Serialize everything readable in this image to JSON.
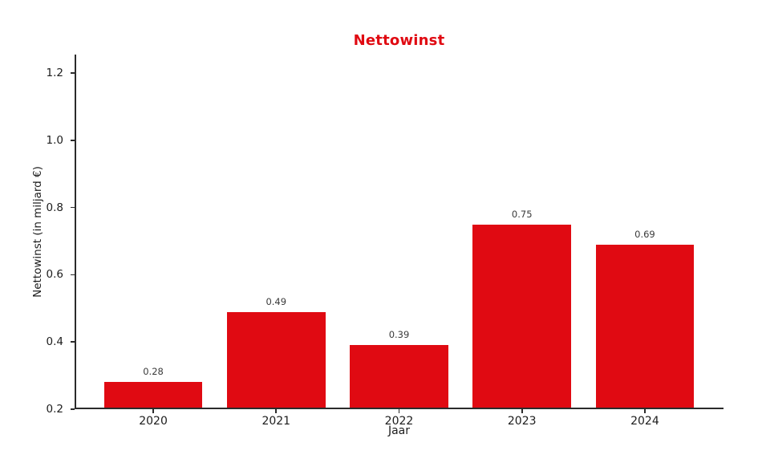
{
  "chart_data": {
    "type": "bar",
    "title": "Nettowinst",
    "xlabel": "Jaar",
    "ylabel": "Nettowinst (in miljard €)",
    "categories": [
      "2020",
      "2021",
      "2022",
      "2023",
      "2024"
    ],
    "values": [
      0.28,
      0.49,
      0.39,
      0.75,
      0.69
    ],
    "value_labels": [
      "0.28",
      "0.49",
      "0.39",
      "0.75",
      "0.69"
    ],
    "yticks": [
      0.2,
      0.4,
      0.6,
      0.8,
      1.0,
      1.2
    ],
    "ytick_labels": [
      "0.2",
      "0.4",
      "0.6",
      "0.8",
      "1.0",
      "1.2"
    ],
    "ylim": [
      0.2,
      1.255
    ],
    "bar_color": "#e00a12",
    "title_color": "#e00a12",
    "grid": false,
    "legend": "none",
    "background_color": "#ffffff"
  }
}
